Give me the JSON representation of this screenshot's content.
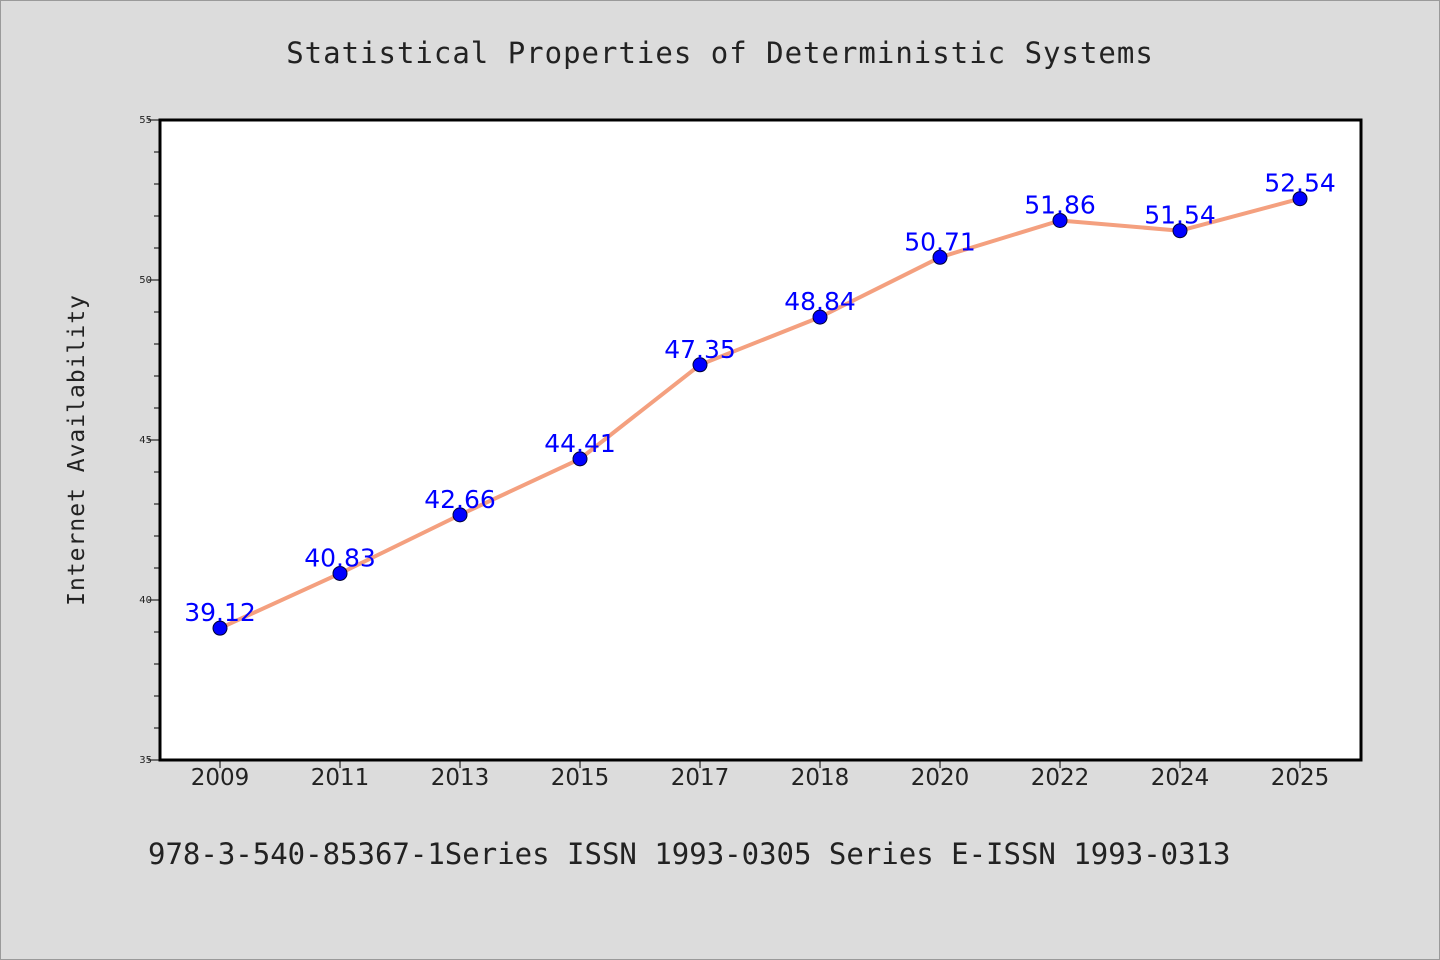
{
  "chart_data": {
    "type": "line",
    "title": "Statistical Properties of Deterministic Systems",
    "ylabel": "Internet Availability",
    "xlabel": "",
    "categories": [
      "2009",
      "2011",
      "2013",
      "2015",
      "2017",
      "2018",
      "2020",
      "2022",
      "2024",
      "2025"
    ],
    "values": [
      39.12,
      40.83,
      42.66,
      44.41,
      47.35,
      48.84,
      50.71,
      51.86,
      51.54,
      52.54
    ],
    "data_labels": [
      "39.12",
      "40.83",
      "42.66",
      "44.41",
      "47.35",
      "48.84",
      "50.71",
      "51.86",
      "51.54",
      "52.54"
    ],
    "ylim": [
      35,
      55
    ],
    "yticks": [
      35,
      40,
      45,
      50,
      55
    ],
    "grid": false,
    "legend": "none",
    "footer": "978-3-540-85367-1Series ISSN 1993-0305 Series E-ISSN 1993-0313",
    "colors": {
      "background": "#dcdcdc",
      "plot_background": "#ffffff",
      "line": "#f4a07f",
      "marker": "#0000ff",
      "data_label": "#0000ff",
      "text": "#222222"
    }
  }
}
